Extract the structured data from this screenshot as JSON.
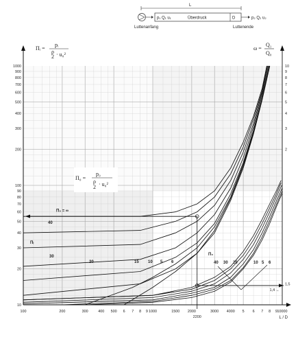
{
  "diagram": {
    "length_label": "L",
    "inlet_label": "p₁ Q₁ u₁",
    "pressure_label": "Überdruck",
    "diameter_label": "D",
    "outlet_label": "p₂ Q₂ u₂",
    "start_label": "Luttenanfang",
    "end_label": "Luttenende"
  },
  "formulas": {
    "left_symbol": "Πᵢ =",
    "left_num": "pᵢ",
    "left_den_a": "ρ",
    "left_den_b": "2",
    "left_den_c": "· u₀²",
    "right_symbol": "ω =",
    "right_num": "Q₁",
    "right_den": "Q₀",
    "mid_symbol": "Π₀ =",
    "mid_num": "p₀",
    "mid_den_a": "ρ",
    "mid_den_b": "2",
    "mid_den_c": "· u₀²"
  },
  "chart_data": {
    "type": "line",
    "xlabel": "L / D",
    "x_scale": "log",
    "y_scale": "log",
    "xlim": [
      100,
      10000
    ],
    "ylim": [
      10,
      1000
    ],
    "x_ticks": [
      {
        "v": 100,
        "l": "100"
      },
      {
        "v": 200,
        "l": "200"
      },
      {
        "v": 300,
        "l": "300"
      },
      {
        "v": 400,
        "l": "400"
      },
      {
        "v": 500,
        "l": "500"
      },
      {
        "v": 600,
        "l": "6"
      },
      {
        "v": 700,
        "l": "7"
      },
      {
        "v": 800,
        "l": "8"
      },
      {
        "v": 900,
        "l": "9"
      },
      {
        "v": 1000,
        "l": "1000"
      },
      {
        "v": 1500,
        "l": "1500"
      },
      {
        "v": 2000,
        "l": "2000"
      },
      {
        "v": 3000,
        "l": "3000"
      },
      {
        "v": 4000,
        "l": "4000"
      },
      {
        "v": 5000,
        "l": "5"
      },
      {
        "v": 6000,
        "l": "6"
      },
      {
        "v": 7000,
        "l": "7"
      },
      {
        "v": 8000,
        "l": "8"
      },
      {
        "v": 9000,
        "l": "9"
      },
      {
        "v": 10000,
        "l": "10000"
      }
    ],
    "y_ticks": [
      {
        "v": 1000,
        "l": "1000"
      },
      {
        "v": 900,
        "l": "900"
      },
      {
        "v": 800,
        "l": "800"
      },
      {
        "v": 700,
        "l": "700"
      },
      {
        "v": 600,
        "l": "600"
      },
      {
        "v": 500,
        "l": "500"
      },
      {
        "v": 400,
        "l": "400"
      },
      {
        "v": 300,
        "l": "300"
      },
      {
        "v": 200,
        "l": "200"
      },
      {
        "v": 100,
        "l": "100"
      },
      {
        "v": 90,
        "l": "90"
      },
      {
        "v": 80,
        "l": "80"
      },
      {
        "v": 70,
        "l": "70"
      },
      {
        "v": 60,
        "l": "60"
      },
      {
        "v": 50,
        "l": "50"
      },
      {
        "v": 40,
        "l": "40"
      },
      {
        "v": 30,
        "l": "30"
      },
      {
        "v": 20,
        "l": "20"
      },
      {
        "v": 10,
        "l": "10"
      }
    ],
    "right_ticks": [
      {
        "v": 1000,
        "l": "10"
      },
      {
        "v": 900,
        "l": "9"
      },
      {
        "v": 800,
        "l": "8"
      },
      {
        "v": 700,
        "l": "7"
      },
      {
        "v": 600,
        "l": "6"
      },
      {
        "v": 500,
        "l": "5"
      },
      {
        "v": 400,
        "l": "4"
      },
      {
        "v": 300,
        "l": "3"
      },
      {
        "v": 200,
        "l": "2"
      },
      {
        "v": 15,
        "l": "1,5"
      }
    ],
    "extra_x_label": "2200",
    "right_axis_note": "1,4 ←",
    "pi0_inf_label": "Π₀ = ∞",
    "pi0_label": "Π₀",
    "pii_label": "Πᵢ",
    "upper_family_labels": [
      "40",
      "30",
      "20",
      "15",
      "10",
      "5",
      "6"
    ],
    "lower_family_labels": [
      "40",
      "30",
      "20",
      "10",
      "5",
      "6"
    ],
    "upper_curves": [
      {
        "name": "∞",
        "points": [
          [
            100,
            55
          ],
          [
            800,
            55
          ],
          [
            1500,
            60
          ],
          [
            2200,
            70
          ],
          [
            3000,
            90
          ],
          [
            4000,
            140
          ],
          [
            5000,
            230
          ],
          [
            6000,
            380
          ],
          [
            7000,
            650
          ],
          [
            7600,
            1000
          ]
        ]
      },
      {
        "name": "40",
        "points": [
          [
            100,
            40
          ],
          [
            800,
            42
          ],
          [
            1500,
            50
          ],
          [
            2200,
            60
          ],
          [
            3000,
            80
          ],
          [
            4000,
            125
          ],
          [
            5000,
            210
          ],
          [
            6000,
            360
          ],
          [
            7000,
            620
          ],
          [
            7600,
            1000
          ]
        ]
      },
      {
        "name": "30",
        "points": [
          [
            100,
            30
          ],
          [
            800,
            32
          ],
          [
            1500,
            40
          ],
          [
            2200,
            50
          ],
          [
            3000,
            68
          ],
          [
            4000,
            110
          ],
          [
            5000,
            190
          ],
          [
            6000,
            330
          ],
          [
            7000,
            600
          ],
          [
            7700,
            1000
          ]
        ]
      },
      {
        "name": "20",
        "points": [
          [
            100,
            21
          ],
          [
            800,
            24
          ],
          [
            1500,
            30
          ],
          [
            2200,
            40
          ],
          [
            3000,
            57
          ],
          [
            4000,
            95
          ],
          [
            5000,
            170
          ],
          [
            6000,
            310
          ],
          [
            7000,
            570
          ],
          [
            7800,
            1000
          ]
        ]
      },
      {
        "name": "15",
        "points": [
          [
            100,
            16
          ],
          [
            800,
            19
          ],
          [
            1500,
            25
          ],
          [
            2200,
            33
          ],
          [
            3000,
            48
          ],
          [
            4000,
            85
          ],
          [
            5000,
            155
          ],
          [
            6000,
            290
          ],
          [
            7000,
            540
          ],
          [
            7900,
            1000
          ]
        ]
      },
      {
        "name": "10",
        "points": [
          [
            100,
            12
          ],
          [
            800,
            15
          ],
          [
            1500,
            20
          ],
          [
            2200,
            27
          ],
          [
            3000,
            40
          ],
          [
            4000,
            75
          ],
          [
            5000,
            140
          ],
          [
            6000,
            270
          ],
          [
            7000,
            520
          ],
          [
            8000,
            1000
          ]
        ]
      },
      {
        "name": "5",
        "points": [
          [
            300,
            10
          ],
          [
            700,
            14
          ],
          [
            1000,
            17
          ],
          [
            1500,
            22
          ],
          [
            2200,
            30
          ],
          [
            3000,
            45
          ],
          [
            4000,
            80
          ],
          [
            5000,
            150
          ],
          [
            6000,
            280
          ],
          [
            7000,
            530
          ],
          [
            8000,
            1000
          ]
        ]
      },
      {
        "name": "6",
        "points": [
          [
            600,
            10
          ],
          [
            1000,
            14
          ],
          [
            1500,
            19
          ],
          [
            2200,
            27
          ],
          [
            3000,
            42
          ],
          [
            4000,
            78
          ],
          [
            5000,
            145
          ],
          [
            6000,
            275
          ],
          [
            7000,
            525
          ],
          [
            8000,
            1000
          ]
        ]
      }
    ],
    "lower_curves": [
      {
        "name": "40",
        "points": [
          [
            100,
            11
          ],
          [
            1000,
            12
          ],
          [
            2000,
            14
          ],
          [
            3000,
            17
          ],
          [
            4000,
            21
          ],
          [
            5000,
            28
          ],
          [
            6000,
            38
          ],
          [
            7000,
            52
          ],
          [
            8000,
            70
          ],
          [
            9000,
            90
          ],
          [
            9800,
            110
          ]
        ]
      },
      {
        "name": "30",
        "points": [
          [
            100,
            11
          ],
          [
            1000,
            12
          ],
          [
            2000,
            13.5
          ],
          [
            3000,
            16
          ],
          [
            4000,
            20
          ],
          [
            5000,
            26
          ],
          [
            6000,
            35
          ],
          [
            7000,
            48
          ],
          [
            8000,
            65
          ],
          [
            9000,
            85
          ],
          [
            9800,
            105
          ]
        ]
      },
      {
        "name": "20",
        "points": [
          [
            100,
            10.5
          ],
          [
            1000,
            11.5
          ],
          [
            2000,
            13
          ],
          [
            3000,
            15
          ],
          [
            4000,
            18.5
          ],
          [
            5000,
            24
          ],
          [
            6000,
            32
          ],
          [
            7000,
            44
          ],
          [
            8000,
            60
          ],
          [
            9000,
            80
          ],
          [
            9900,
            100
          ]
        ]
      },
      {
        "name": "10",
        "points": [
          [
            100,
            10.2
          ],
          [
            1000,
            11
          ],
          [
            2000,
            12.5
          ],
          [
            3000,
            14
          ],
          [
            4000,
            17
          ],
          [
            5000,
            22
          ],
          [
            6000,
            29
          ],
          [
            7000,
            40
          ],
          [
            8000,
            55
          ],
          [
            9000,
            74
          ],
          [
            10000,
            95
          ]
        ]
      },
      {
        "name": "5",
        "points": [
          [
            200,
            10
          ],
          [
            1000,
            10.7
          ],
          [
            2000,
            12
          ],
          [
            3000,
            13.5
          ],
          [
            4000,
            16
          ],
          [
            5000,
            20.5
          ],
          [
            6000,
            27
          ],
          [
            7000,
            37
          ],
          [
            8000,
            51
          ],
          [
            9000,
            69
          ],
          [
            10000,
            90
          ]
        ]
      },
      {
        "name": "6",
        "points": [
          [
            300,
            10
          ],
          [
            1000,
            10.5
          ],
          [
            2000,
            11.5
          ],
          [
            3000,
            13
          ],
          [
            4000,
            15.5
          ],
          [
            5000,
            20
          ],
          [
            6000,
            26
          ],
          [
            7000,
            35
          ],
          [
            8000,
            48
          ],
          [
            9000,
            66
          ],
          [
            10000,
            86
          ]
        ]
      }
    ]
  }
}
